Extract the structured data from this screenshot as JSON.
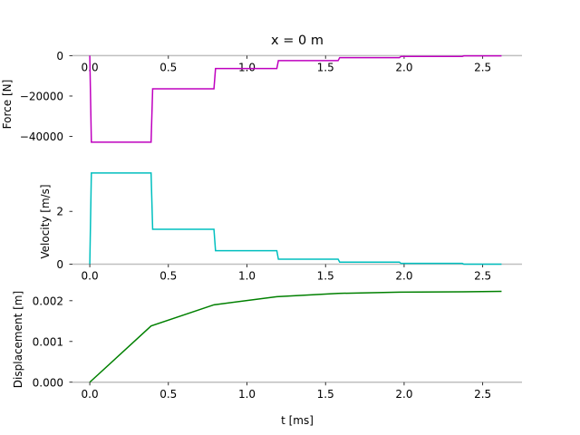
{
  "figure": {
    "title": "x = 0 m",
    "xlabel": "t [ms]"
  },
  "chart_data": [
    {
      "type": "line",
      "title": "x = 0 m",
      "xlabel": "",
      "ylabel": "Force [N]",
      "xlim": [
        -0.11,
        2.75
      ],
      "ylim": [
        -46000,
        1500
      ],
      "xticks": [
        0.0,
        0.5,
        1.0,
        1.5,
        2.0,
        2.5
      ],
      "xticklabels": [
        "0.0",
        "0.5",
        "1.0",
        "1.5",
        "2.0",
        "2.5"
      ],
      "yticks": [
        0,
        -20000,
        -40000
      ],
      "yticklabels": [
        "0",
        "−20000",
        "−40000"
      ],
      "color": "#bf00bf",
      "series": [
        {
          "x": [
            0.0,
            0.01,
            0.39,
            0.4,
            0.79,
            0.8,
            1.19,
            1.2,
            1.58,
            1.59,
            1.97,
            1.98,
            2.37,
            2.38,
            2.62
          ],
          "y": [
            0,
            -42800,
            -42800,
            -16400,
            -16400,
            -6400,
            -6400,
            -2500,
            -2500,
            -1000,
            -1000,
            -400,
            -400,
            -150,
            -150
          ]
        }
      ]
    },
    {
      "type": "line",
      "xlabel": "",
      "ylabel": "Velocity [m/s]",
      "xlim": [
        -0.11,
        2.75
      ],
      "ylim": [
        -0.05,
        3.55
      ],
      "xticks": [
        0.0,
        0.5,
        1.0,
        1.5,
        2.0,
        2.5
      ],
      "xticklabels": [
        "0.0",
        "0.5",
        "1.0",
        "1.5",
        "2.0",
        "2.5"
      ],
      "yticks": [
        0,
        2
      ],
      "yticklabels": [
        "0",
        "2"
      ],
      "color": "#00bfbf",
      "series": [
        {
          "x": [
            0.0,
            0.01,
            0.39,
            0.4,
            0.79,
            0.8,
            1.19,
            1.2,
            1.58,
            1.59,
            1.97,
            1.98,
            2.37,
            2.38,
            2.62
          ],
          "y": [
            0,
            3.45,
            3.45,
            1.32,
            1.32,
            0.51,
            0.51,
            0.19,
            0.19,
            0.08,
            0.08,
            0.03,
            0.03,
            0.0,
            0.0
          ]
        }
      ]
    },
    {
      "type": "line",
      "xlabel": "t [ms]",
      "ylabel": "Displacement [m]",
      "xlim": [
        -0.11,
        2.75
      ],
      "ylim": [
        -5e-05,
        0.00233
      ],
      "xticks": [
        0.0,
        0.5,
        1.0,
        1.5,
        2.0,
        2.5
      ],
      "xticklabels": [
        "0.0",
        "0.5",
        "1.0",
        "1.5",
        "2.0",
        "2.5"
      ],
      "yticks": [
        0.0,
        0.001,
        0.002
      ],
      "yticklabels": [
        "0.000",
        "0.001",
        "0.002"
      ],
      "color": "#008000",
      "series": [
        {
          "x": [
            0.0,
            0.39,
            0.79,
            1.19,
            1.58,
            1.97,
            2.37,
            2.62
          ],
          "y": [
            0.0,
            0.00138,
            0.0019,
            0.0021,
            0.00218,
            0.00221,
            0.00222,
            0.00223
          ]
        }
      ]
    }
  ]
}
